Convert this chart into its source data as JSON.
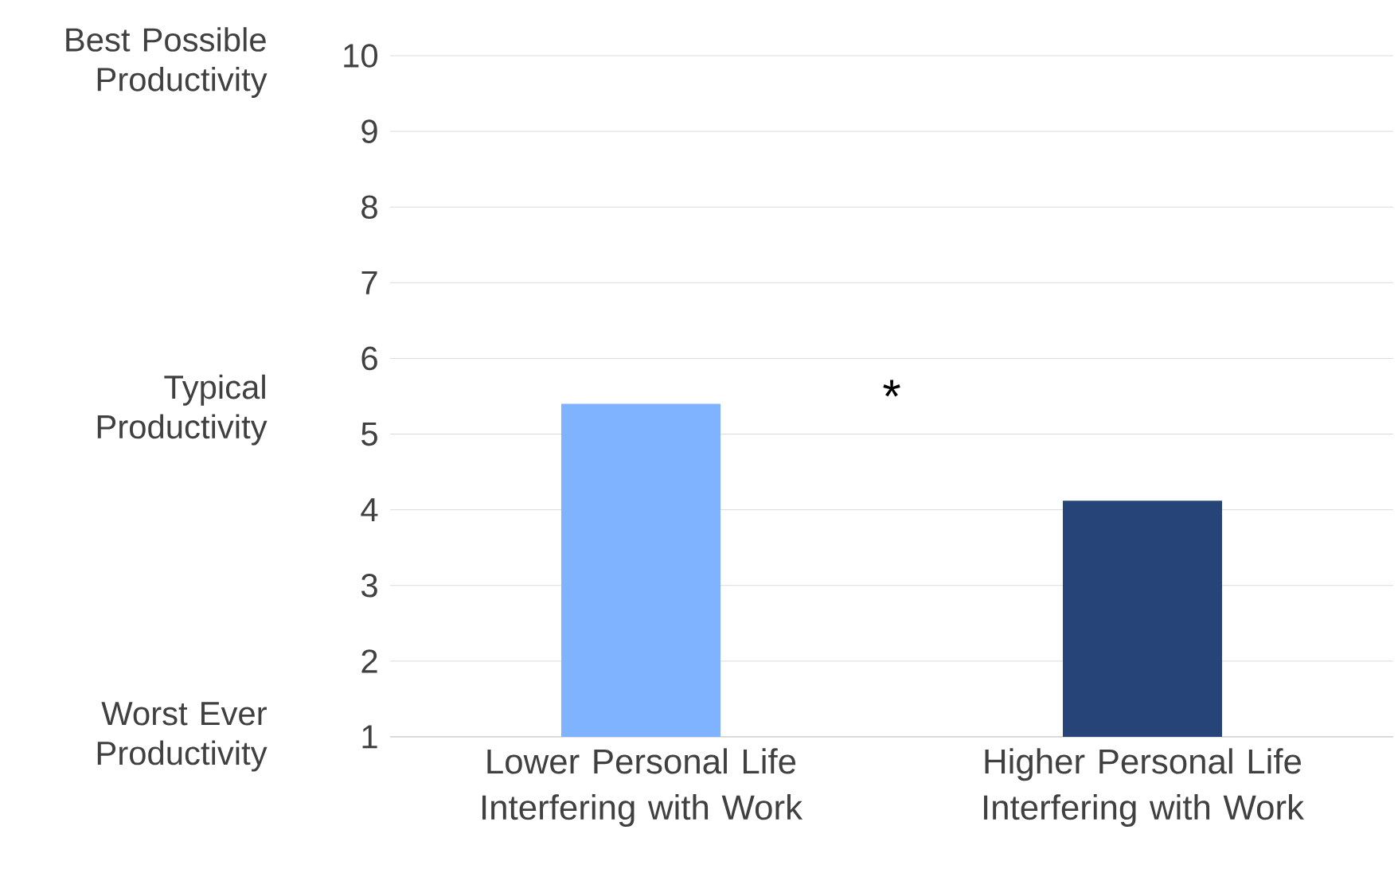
{
  "chart_data": {
    "type": "bar",
    "categories": [
      "Lower Personal Life Interfering with Work",
      "Higher Personal Life Interfering with Work"
    ],
    "values": [
      5.4,
      4.12
    ],
    "colors": [
      "#7fb2ff",
      "#264478"
    ],
    "ylim": [
      1,
      10
    ],
    "yticks": [
      1,
      2,
      3,
      4,
      5,
      6,
      7,
      8,
      9,
      10
    ],
    "grid": "y",
    "annotations": [
      "Best Possible Productivity",
      "Typical Productivity",
      "Worst Ever Productivity",
      "*"
    ]
  }
}
